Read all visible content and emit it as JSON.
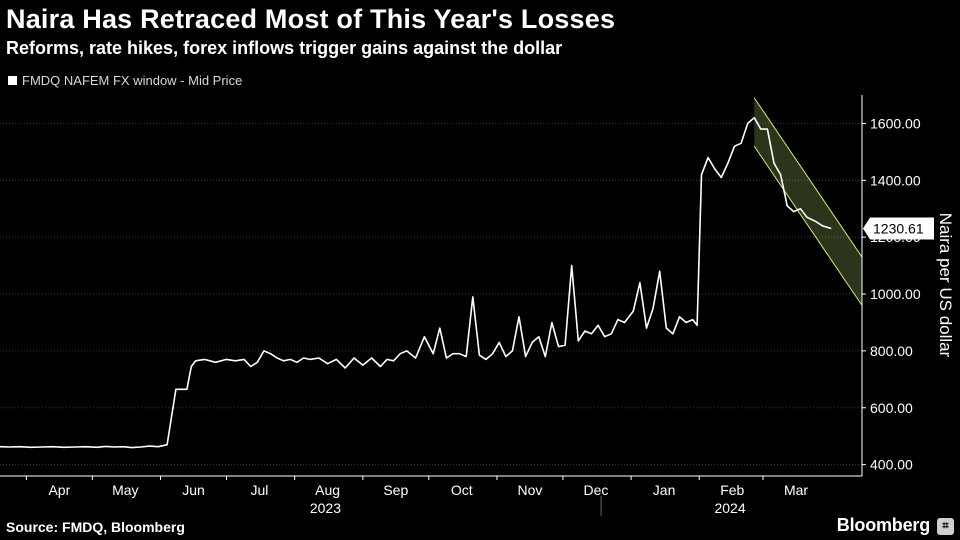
{
  "chart_data": {
    "type": "line",
    "title": "Naira Has Retraced Most of This Year's Losses",
    "subtitle": "Reforms, rate hikes, forex inflows trigger gains against the dollar",
    "ylabel": "Naira per US dollar",
    "ylim": [
      360,
      1700
    ],
    "xlim": [
      "2023-03-20",
      "2024-04-15"
    ],
    "yticks": [
      400,
      600,
      800,
      1000,
      1200,
      1400,
      1600
    ],
    "ytick_labels": [
      "400.00",
      "600.00",
      "800.00",
      "1000.00",
      "1200.00",
      "1400.00",
      "1600.00"
    ],
    "xticks": [
      {
        "label": "Apr",
        "date": "2023-04-01"
      },
      {
        "label": "May",
        "date": "2023-05-01"
      },
      {
        "label": "Jun",
        "date": "2023-06-01"
      },
      {
        "label": "Jul",
        "date": "2023-07-01"
      },
      {
        "label": "Aug",
        "date": "2023-08-01"
      },
      {
        "label": "Sep",
        "date": "2023-09-01"
      },
      {
        "label": "Oct",
        "date": "2023-10-01"
      },
      {
        "label": "Nov",
        "date": "2023-11-01"
      },
      {
        "label": "Dec",
        "date": "2023-12-01"
      },
      {
        "label": "Jan",
        "date": "2024-01-01"
      },
      {
        "label": "Feb",
        "date": "2024-02-01"
      },
      {
        "label": "Mar",
        "date": "2024-03-01"
      }
    ],
    "year_labels": [
      {
        "label": "2023",
        "date": "2023-08-15"
      },
      {
        "label": "2024",
        "date": "2024-02-15"
      }
    ],
    "grid": true,
    "legend_position": "top-left",
    "last_value_label": "1230.61",
    "line_color": "#ffffff",
    "channel_color": "#c8f07a",
    "trend_channel": {
      "upper": [
        [
          "2024-02-26",
          1690
        ],
        [
          "2024-04-15",
          1130
        ]
      ],
      "lower": [
        [
          "2024-02-26",
          1520
        ],
        [
          "2024-04-15",
          960
        ]
      ]
    },
    "series": [
      {
        "name": "FMDQ NAFEM FX window - Mid Price",
        "x": [
          "2023-03-20",
          "2023-03-24",
          "2023-03-29",
          "2023-04-03",
          "2023-04-08",
          "2023-04-13",
          "2023-04-18",
          "2023-04-23",
          "2023-04-28",
          "2023-05-03",
          "2023-05-07",
          "2023-05-11",
          "2023-05-15",
          "2023-05-19",
          "2023-05-23",
          "2023-05-27",
          "2023-05-31",
          "2023-06-04",
          "2023-06-08",
          "2023-06-13",
          "2023-06-15",
          "2023-06-17",
          "2023-06-21",
          "2023-06-26",
          "2023-07-01",
          "2023-07-05",
          "2023-07-09",
          "2023-07-12",
          "2023-07-15",
          "2023-07-18",
          "2023-07-21",
          "2023-07-24",
          "2023-07-27",
          "2023-07-30",
          "2023-08-02",
          "2023-08-05",
          "2023-08-08",
          "2023-08-12",
          "2023-08-16",
          "2023-08-20",
          "2023-08-24",
          "2023-08-28",
          "2023-09-01",
          "2023-09-05",
          "2023-09-09",
          "2023-09-12",
          "2023-09-15",
          "2023-09-18",
          "2023-09-21",
          "2023-09-25",
          "2023-09-29",
          "2023-10-03",
          "2023-10-06",
          "2023-10-09",
          "2023-10-12",
          "2023-10-15",
          "2023-10-18",
          "2023-10-21",
          "2023-10-24",
          "2023-10-27",
          "2023-10-30",
          "2023-11-02",
          "2023-11-05",
          "2023-11-08",
          "2023-11-11",
          "2023-11-14",
          "2023-11-17",
          "2023-11-20",
          "2023-11-23",
          "2023-11-26",
          "2023-11-29",
          "2023-12-02",
          "2023-12-05",
          "2023-12-08",
          "2023-12-11",
          "2023-12-14",
          "2023-12-17",
          "2023-12-20",
          "2023-12-23",
          "2023-12-26",
          "2023-12-29",
          "2024-01-02",
          "2024-01-05",
          "2024-01-08",
          "2024-01-11",
          "2024-01-14",
          "2024-01-17",
          "2024-01-20",
          "2024-01-23",
          "2024-01-26",
          "2024-01-29",
          "2024-01-31",
          "2024-02-02",
          "2024-02-05",
          "2024-02-08",
          "2024-02-11",
          "2024-02-14",
          "2024-02-17",
          "2024-02-20",
          "2024-02-23",
          "2024-02-26",
          "2024-02-29",
          "2024-03-03",
          "2024-03-06",
          "2024-03-09",
          "2024-03-12",
          "2024-03-15",
          "2024-03-18",
          "2024-03-21",
          "2024-03-25",
          "2024-03-28",
          "2024-04-01"
        ],
        "values": [
          463,
          462,
          463,
          461,
          462,
          463,
          461,
          462,
          463,
          461,
          464,
          462,
          463,
          460,
          462,
          465,
          463,
          470,
          665,
          665,
          745,
          765,
          770,
          760,
          770,
          765,
          770,
          745,
          760,
          800,
          790,
          775,
          765,
          770,
          760,
          775,
          770,
          775,
          755,
          770,
          740,
          775,
          750,
          775,
          745,
          770,
          765,
          790,
          800,
          775,
          850,
          790,
          880,
          775,
          790,
          790,
          780,
          990,
          785,
          770,
          790,
          830,
          780,
          800,
          920,
          780,
          830,
          850,
          780,
          900,
          815,
          820,
          1100,
          835,
          870,
          860,
          890,
          850,
          860,
          910,
          900,
          940,
          1040,
          880,
          950,
          1080,
          880,
          860,
          920,
          900,
          910,
          890,
          1420,
          1480,
          1440,
          1410,
          1460,
          1520,
          1530,
          1600,
          1620,
          1580,
          1580,
          1460,
          1420,
          1310,
          1290,
          1300,
          1270,
          1255,
          1240,
          1230.61
        ]
      }
    ]
  },
  "source": "Source: FMDQ, Bloomberg",
  "brand": "Bloomberg"
}
